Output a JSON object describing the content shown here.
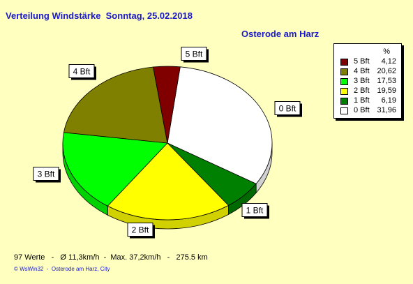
{
  "header": {
    "title": "Verteilung Windstärke  Sonntag, 25.02.2018",
    "subtitle": "Osterode am Harz"
  },
  "legend": {
    "header": "%",
    "items": [
      {
        "label": "5 Bft",
        "value": "4,12",
        "color": "#800000"
      },
      {
        "label": "4 Bft",
        "value": "20,62",
        "color": "#808000"
      },
      {
        "label": "3 Bft",
        "value": "17,53",
        "color": "#00FF00"
      },
      {
        "label": "2 Bft",
        "value": "19,59",
        "color": "#FFFF00"
      },
      {
        "label": "1 Bft",
        "value": "6,19",
        "color": "#008000"
      },
      {
        "label": "0 Bft",
        "value": "31,96",
        "color": "#FFFFFF"
      }
    ]
  },
  "footer": {
    "stats": "97 Werte   -   Ø 11,3km/h  -  Max. 37,2km/h   -   275.5 km",
    "credit": "© WsWin32  -  Osterode am Harz, City"
  },
  "chart_data": {
    "type": "pie",
    "title": "Verteilung Windstärke  Sonntag, 25.02.2018",
    "subtitle": "Osterode am Harz",
    "unit": "%",
    "slices": [
      {
        "label": "0 Bft",
        "value": 31.96,
        "color": "#FFFFFF"
      },
      {
        "label": "1 Bft",
        "value": 6.19,
        "color": "#008000"
      },
      {
        "label": "2 Bft",
        "value": 19.59,
        "color": "#FFFF00"
      },
      {
        "label": "3 Bft",
        "value": 17.53,
        "color": "#00FF00"
      },
      {
        "label": "4 Bft",
        "value": 20.62,
        "color": "#808000"
      },
      {
        "label": "5 Bft",
        "value": 4.12,
        "color": "#800000"
      }
    ],
    "legend_position": "top-right",
    "three_d": true
  }
}
